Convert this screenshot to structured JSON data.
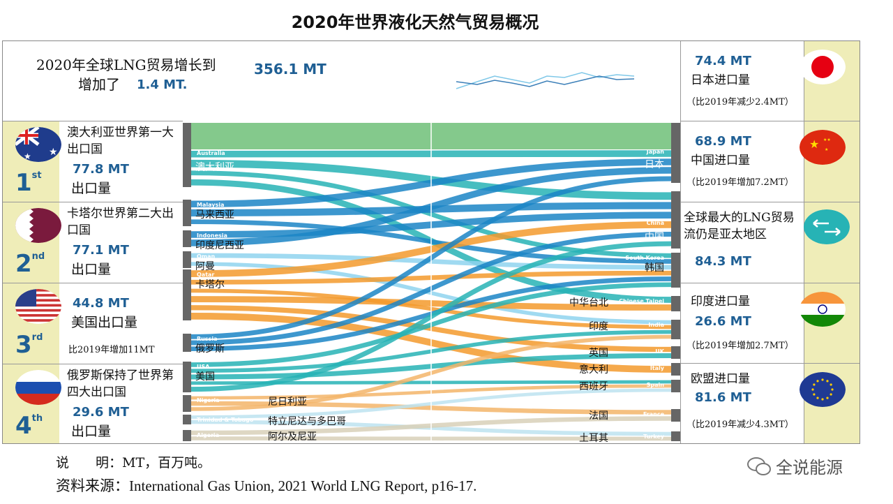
{
  "title": "2020年世界液化天然气贸易概况",
  "header": {
    "line1": "2020年全球LNG贸易增长到",
    "total": "356.1 MT",
    "line2": "增加了",
    "increase": "1.4 MT."
  },
  "exporters": [
    {
      "rank": "1",
      "suffix": "st",
      "desc": "澳大利亚世界第一大出口国",
      "value": "77.8 MT",
      "label": "出口量",
      "flag": "australia-flag"
    },
    {
      "rank": "2",
      "suffix": "nd",
      "desc": "卡塔尔世界第二大出口国",
      "value": "77.1 MT",
      "label": "出口量",
      "flag": "qatar-flag"
    },
    {
      "rank": "3",
      "suffix": "rd",
      "desc": "",
      "value": "44.8 MT",
      "label": "美国出口量",
      "note": "比2019年增加11MT",
      "flag": "usa-flag"
    },
    {
      "rank": "4",
      "suffix": "th",
      "desc": "俄罗斯保持了世界第四大出口国",
      "value": "29.6 MT",
      "label": "出口量",
      "flag": "russia-flag"
    }
  ],
  "importers": [
    {
      "value": "74.4 MT",
      "label": "日本进口量",
      "note": "（比2019年减少2.4MT）",
      "flag": "japan-flag"
    },
    {
      "value": "68.9 MT",
      "label": "中国进口量",
      "note": "（比2019年增加7.2MT）",
      "flag": "china-flag"
    },
    {
      "value": "84.3 MT",
      "label": "全球最大的LNG贸易流仍是亚太地区",
      "note": "",
      "flag": "exchange-arrows-icon"
    },
    {
      "value": "26.6 MT",
      "label": "印度进口量",
      "note": "（比2019年增加2.7MT）",
      "flag": "india-flag"
    },
    {
      "value": "81.6 MT",
      "label": "欧盟进口量",
      "note": "（比2019年减少4.3MT）",
      "flag": "eu-flag"
    }
  ],
  "sources": [
    {
      "en": "Australia",
      "cn": "澳大利亚",
      "color": "#27b3b5"
    },
    {
      "en": "Malaysia",
      "cn": "马来西亚",
      "color": "#1b85c6"
    },
    {
      "en": "Indonesia",
      "cn": "印度尼西亚",
      "color": "#1b85c6"
    },
    {
      "en": "Oman",
      "cn": "阿曼",
      "color": "#8fd3ee"
    },
    {
      "en": "Qatar",
      "cn": "卡塔尔",
      "color": "#f39a2d"
    },
    {
      "en": "Russia",
      "cn": "俄罗斯",
      "color": "#1b85c6"
    },
    {
      "en": "USA",
      "cn": "美国",
      "color": "#27b3b5"
    },
    {
      "en": "Nigeria",
      "cn": "尼日利亚",
      "color": "#f3b56a"
    },
    {
      "en": "Trinidad & Tobago",
      "cn": "特立尼达与多巴哥",
      "color": "#bde3f0"
    },
    {
      "en": "Algeria",
      "cn": "阿尔及尼亚",
      "color": "#d8d0b8"
    }
  ],
  "targets": [
    {
      "en": "Japan",
      "cn": "日本",
      "color": "#1b85c6"
    },
    {
      "en": "China",
      "cn": "中国",
      "color": "#27b3b5"
    },
    {
      "en": "South Korea",
      "cn": "韩国",
      "color": "#8fd3ee"
    },
    {
      "en": "Chinese Taipei",
      "cn": "中华台北",
      "color": "#f6c26e"
    },
    {
      "en": "India",
      "cn": "印度",
      "color": "#f39a2d"
    },
    {
      "en": "UK",
      "cn": "英国",
      "color": "#1a9e98"
    },
    {
      "en": "Italy",
      "cn": "意大利",
      "color": "#8cc9a0"
    },
    {
      "en": "Spain",
      "cn": "西班牙",
      "color": "#f6c8b0"
    },
    {
      "en": "France",
      "cn": "法国",
      "color": "#d8d0b8"
    },
    {
      "en": "Turkey",
      "cn": "土耳其",
      "color": "#cfe6c0"
    }
  ],
  "flows": [
    [
      0,
      0
    ],
    [
      0,
      1
    ],
    [
      0,
      2
    ],
    [
      0,
      3
    ],
    [
      1,
      0
    ],
    [
      1,
      1
    ],
    [
      1,
      2
    ],
    [
      2,
      1
    ],
    [
      2,
      0
    ],
    [
      3,
      2
    ],
    [
      3,
      4
    ],
    [
      4,
      1
    ],
    [
      4,
      2
    ],
    [
      4,
      4
    ],
    [
      4,
      3
    ],
    [
      4,
      5
    ],
    [
      4,
      6
    ],
    [
      5,
      0
    ],
    [
      5,
      1
    ],
    [
      5,
      2
    ],
    [
      6,
      2
    ],
    [
      6,
      4
    ],
    [
      6,
      5
    ],
    [
      6,
      7
    ],
    [
      6,
      1
    ],
    [
      7,
      7
    ],
    [
      7,
      8
    ],
    [
      7,
      4
    ],
    [
      8,
      7
    ],
    [
      8,
      9
    ],
    [
      9,
      8
    ],
    [
      9,
      9
    ]
  ],
  "footer": {
    "note": "说　　明：MT，百万吨。",
    "source": "资料来源：International Gas Union, 2021 World LNG Report, p16-17."
  },
  "watermark": "全说能源"
}
